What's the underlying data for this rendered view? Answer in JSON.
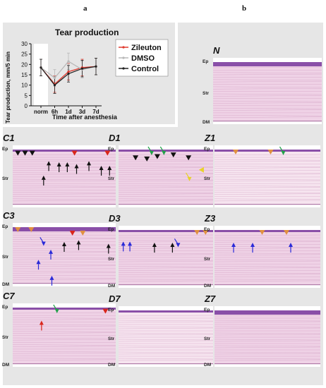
{
  "panel_letters": {
    "a": "a",
    "b": "b"
  },
  "chart_data": {
    "type": "line",
    "title": "Tear production",
    "xlabel": "Time after anesthesia",
    "ylabel": "Tear production, mm/5 min",
    "categories": [
      "norm",
      "6h",
      "1d",
      "3d",
      "7d"
    ],
    "ylim": [
      0,
      30
    ],
    "yticks": [
      0,
      5,
      10,
      15,
      20,
      25,
      30
    ],
    "grid": false,
    "legend_position": "right",
    "series": [
      {
        "name": "Zileuton",
        "color": "#e03a2f",
        "values": [
          18.5,
          10.5,
          16.5,
          18.5,
          19
        ]
      },
      {
        "name": "DMSO",
        "color": "#b8b8b8",
        "values": [
          18.5,
          13.5,
          21.5,
          17.5,
          19
        ]
      },
      {
        "name": "Control",
        "color": "#222222",
        "values": [
          18.5,
          10,
          15.5,
          18,
          19
        ]
      }
    ],
    "error_bars": [
      4,
      4,
      4,
      4,
      4
    ]
  },
  "micrographs": [
    {
      "label": "N",
      "ep": "Ep",
      "str": "Str",
      "dm": "DM"
    },
    {
      "label": "C1",
      "ep": "Ep",
      "str": "Str",
      "dm": ""
    },
    {
      "label": "D1",
      "ep": "Ep",
      "str": "Str",
      "dm": ""
    },
    {
      "label": "Z1",
      "ep": "Ep",
      "str": "Str",
      "dm": ""
    },
    {
      "label": "C3",
      "ep": "Ep",
      "str": "Str",
      "dm": "DM"
    },
    {
      "label": "D3",
      "ep": "Ep",
      "str": "Str",
      "dm": "DM"
    },
    {
      "label": "Z3",
      "ep": "Ep",
      "str": "Str",
      "dm": "DM"
    },
    {
      "label": "C7",
      "ep": "Ep",
      "str": "Str",
      "dm": "DM"
    },
    {
      "label": "D7",
      "ep": "Ep",
      "str": "Str",
      "dm": "DM"
    },
    {
      "label": "Z7",
      "ep": "Ep",
      "str": "Str",
      "dm": "DM"
    }
  ],
  "colors": {
    "epithelium": "#8a4fa8",
    "stroma": "#efd2e6",
    "arrow_black": "#111111",
    "arrow_red": "#d9261c",
    "arrow_orange": "#e09040",
    "arrow_green": "#22a04a",
    "arrow_blue": "#2a2ad8",
    "arrow_yellow": "#e8d22a"
  }
}
